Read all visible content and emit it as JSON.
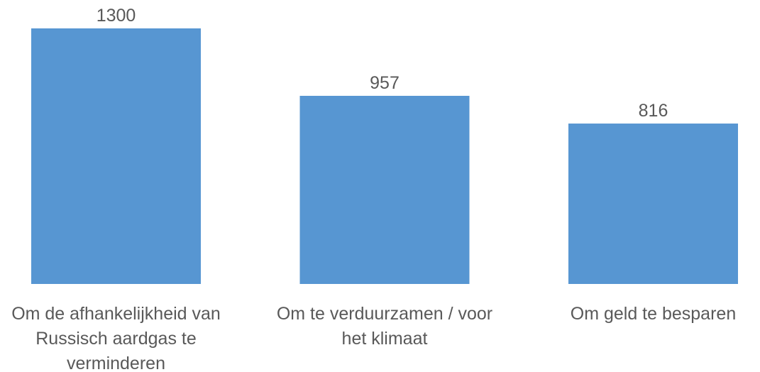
{
  "chart_data": {
    "type": "bar",
    "categories": [
      "Om de afhankelijkheid van Russisch aardgas te verminderen",
      "Om te verduurzamen / voor het klimaat",
      "Om geld te besparen"
    ],
    "values": [
      1300,
      957,
      816
    ],
    "color": "#5796d2"
  }
}
